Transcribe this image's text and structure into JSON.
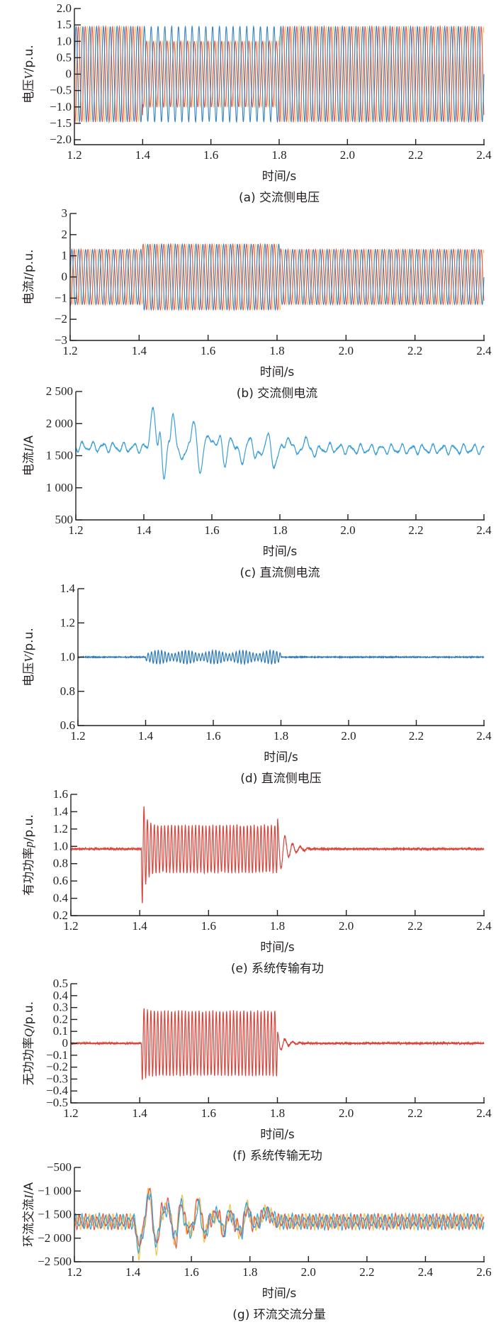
{
  "chart_data": [
    {
      "id": "a",
      "type": "line",
      "title": "(a) 交流侧电压",
      "xlabel": "时间/s",
      "ylabel": {
        "prefix": "电压",
        "var": "V",
        "unit": "/p.u."
      },
      "xlim": [
        1.2,
        2.4
      ],
      "ylim": [
        -2.0,
        2.0
      ],
      "xticks": [
        1.2,
        1.4,
        1.6,
        1.8,
        2.0,
        2.2,
        2.4
      ],
      "xtick_labels": [
        "1.2",
        "1.4",
        "1.6",
        "1.8",
        "2.0",
        "2.2",
        "2.4"
      ],
      "yticks": [
        2.0,
        1.5,
        1.0,
        0.5,
        0,
        -0.5,
        -1.0,
        -1.5,
        -2.0
      ],
      "ytick_labels": [
        "2.0",
        "1.5",
        "1.0",
        "0.5",
        "0",
        "−0.5",
        "−1.0",
        "−1.5",
        "−2.0"
      ],
      "generator": "sine3",
      "frequency_hz": 50,
      "series": [
        {
          "name": "phase-c",
          "color": "#f3c27a",
          "phase_deg": 120,
          "segments": [
            [
              1.2,
              1.4,
              1.45
            ],
            [
              1.4,
              1.8,
              1.0
            ],
            [
              1.8,
              2.4,
              1.45
            ]
          ]
        },
        {
          "name": "phase-b",
          "color": "#dc4a3f",
          "phase_deg": -120,
          "segments": [
            [
              1.2,
              1.4,
              1.45
            ],
            [
              1.4,
              1.8,
              1.0
            ],
            [
              1.8,
              2.4,
              1.45
            ]
          ]
        },
        {
          "name": "phase-a",
          "color": "#2277b8",
          "phase_deg": 0,
          "segments": [
            [
              1.2,
              1.4,
              1.45
            ],
            [
              1.4,
              1.8,
              1.45
            ],
            [
              1.8,
              2.4,
              1.45
            ]
          ]
        }
      ]
    },
    {
      "id": "b",
      "type": "line",
      "title": "(b) 交流侧电流",
      "xlabel": "时间/s",
      "ylabel": {
        "prefix": "电流",
        "var": "I",
        "unit": "/p.u."
      },
      "xlim": [
        1.2,
        2.4
      ],
      "ylim": [
        -3,
        3
      ],
      "xticks": [
        1.2,
        1.4,
        1.6,
        1.8,
        2.0,
        2.2,
        2.4
      ],
      "xtick_labels": [
        "1.2",
        "1.4",
        "1.6",
        "1.8",
        "2.0",
        "2.2",
        "2.4"
      ],
      "yticks": [
        3,
        2,
        1,
        0,
        -1,
        -2,
        -3
      ],
      "ytick_labels": [
        "3",
        "2",
        "1",
        "0",
        "−1",
        "−2",
        "−3"
      ],
      "generator": "sine3",
      "frequency_hz": 50,
      "series": [
        {
          "name": "phase-c",
          "color": "#f3c27a",
          "phase_deg": 120,
          "segments": [
            [
              1.2,
              1.41,
              1.3
            ],
            [
              1.41,
              1.81,
              1.55
            ],
            [
              1.81,
              2.4,
              1.3
            ]
          ]
        },
        {
          "name": "phase-b",
          "color": "#dc4a3f",
          "phase_deg": -120,
          "segments": [
            [
              1.2,
              1.41,
              1.3
            ],
            [
              1.41,
              1.81,
              1.55
            ],
            [
              1.81,
              2.4,
              1.3
            ]
          ]
        },
        {
          "name": "phase-a",
          "color": "#2277b8",
          "phase_deg": 0,
          "segments": [
            [
              1.2,
              1.41,
              1.3
            ],
            [
              1.41,
              1.81,
              1.55
            ],
            [
              1.81,
              2.4,
              1.3
            ]
          ]
        }
      ]
    },
    {
      "id": "c",
      "type": "line",
      "title": "(c) 直流侧电流",
      "xlabel": "时间/s",
      "ylabel": {
        "prefix": "电流",
        "var": "I",
        "unit": "/A"
      },
      "xlim": [
        1.2,
        2.4
      ],
      "ylim": [
        500,
        2500
      ],
      "xticks": [
        1.2,
        1.4,
        1.6,
        1.8,
        2.0,
        2.2,
        2.4
      ],
      "xtick_labels": [
        "1.2",
        "1.4",
        "1.6",
        "1.8",
        "2.0",
        "2.2",
        "2.4"
      ],
      "yticks": [
        2500,
        2000,
        1500,
        1000,
        500
      ],
      "ytick_labels": [
        "2 500",
        "2 000",
        "1 500",
        "1 000",
        "500"
      ],
      "generator": "points",
      "series": [
        {
          "name": "dc-current",
          "color": "#3a9fd6",
          "ripple_hz": 33,
          "ripple_amp": 60,
          "ripple_phase_deg": 0,
          "points": [
            [
              1.2,
              1640
            ],
            [
              1.41,
              1620
            ],
            [
              1.425,
              2230
            ],
            [
              1.44,
              1700
            ],
            [
              1.447,
              1900
            ],
            [
              1.46,
              1100
            ],
            [
              1.475,
              1800
            ],
            [
              1.485,
              2120
            ],
            [
              1.5,
              1600
            ],
            [
              1.52,
              1450
            ],
            [
              1.535,
              1750
            ],
            [
              1.545,
              2050
            ],
            [
              1.565,
              1300
            ],
            [
              1.585,
              1750
            ],
            [
              1.6,
              1800
            ],
            [
              1.612,
              1600
            ],
            [
              1.625,
              1830
            ],
            [
              1.64,
              1300
            ],
            [
              1.655,
              1830
            ],
            [
              1.67,
              1600
            ],
            [
              1.69,
              1450
            ],
            [
              1.715,
              1780
            ],
            [
              1.73,
              1450
            ],
            [
              1.745,
              1560
            ],
            [
              1.765,
              1780
            ],
            [
              1.785,
              1350
            ],
            [
              1.81,
              1700
            ],
            [
              1.84,
              1700
            ],
            [
              1.855,
              1480
            ],
            [
              1.875,
              1800
            ],
            [
              1.89,
              1560
            ],
            [
              1.95,
              1620
            ],
            [
              2.0,
              1600
            ],
            [
              2.4,
              1600
            ]
          ]
        }
      ]
    },
    {
      "id": "d",
      "type": "line",
      "title": "(d) 直流侧电压",
      "xlabel": "时间/s",
      "ylabel": {
        "prefix": "电压",
        "var": "V",
        "unit": "/p.u."
      },
      "xlim": [
        1.2,
        2.4
      ],
      "ylim": [
        0.6,
        1.4
      ],
      "xticks": [
        1.2,
        1.4,
        1.6,
        1.8,
        2.0,
        2.2,
        2.4
      ],
      "xtick_labels": [
        "1.2",
        "1.4",
        "1.6",
        "1.8",
        "2.0",
        "2.2",
        "2.4"
      ],
      "yticks": [
        1.4,
        1.2,
        1.0,
        0.8,
        0.6
      ],
      "ytick_labels": [
        "1.4",
        "1.2",
        "1.0",
        "0.8",
        "0.6"
      ],
      "generator": "burst",
      "series": [
        {
          "name": "dc-voltage",
          "color": "#2a78b8",
          "base": 1.0,
          "noise": 0.002,
          "burst": [
            1.4,
            1.8
          ],
          "burst_amp": 0.04,
          "burst_hz": 100,
          "mod_hz": 12,
          "spike": 0,
          "ring_amp": 0,
          "ring_hz": 40,
          "ring_decay_s": 0.02
        }
      ]
    },
    {
      "id": "e",
      "type": "line",
      "title": "(e) 系统传输有功",
      "xlabel": "时间/s",
      "ylabel": {
        "prefix": "有功功率",
        "var": "p",
        "unit": "/p.u."
      },
      "xlim": [
        1.2,
        2.4
      ],
      "ylim": [
        0.2,
        1.6
      ],
      "xticks": [
        1.2,
        1.4,
        1.6,
        1.8,
        2.0,
        2.2,
        2.4
      ],
      "xtick_labels": [
        "1.2",
        "1.4",
        "1.6",
        "1.8",
        "2.0",
        "2.2",
        "2.4"
      ],
      "yticks": [
        1.6,
        1.4,
        1.2,
        1.0,
        0.8,
        0.6,
        0.4,
        0.2
      ],
      "ytick_labels": [
        "1.6",
        "1.4",
        "1.2",
        "1.0",
        "0.8",
        "0.6",
        "0.4",
        "0.2"
      ],
      "generator": "burst",
      "series": [
        {
          "name": "active-power",
          "color": "#d9443b",
          "base": 0.97,
          "noise": 0.012,
          "burst": [
            1.405,
            1.8
          ],
          "burst_amp": 0.27,
          "burst_hz": 100,
          "mod_hz": 0,
          "spike": 0.45,
          "ring_amp": 0.35,
          "ring_hz": 45,
          "ring_decay_s": 0.025
        }
      ]
    },
    {
      "id": "f",
      "type": "line",
      "title": "(f) 系统传输无功",
      "xlabel": "时间/s",
      "ylabel": {
        "prefix": "无功功率",
        "var": "Q",
        "unit": "/p.u."
      },
      "xlim": [
        1.2,
        2.4
      ],
      "ylim": [
        -0.5,
        0.5
      ],
      "xticks": [
        1.2,
        1.4,
        1.6,
        1.8,
        2.0,
        2.2,
        2.4
      ],
      "xtick_labels": [
        "1.2",
        "1.4",
        "1.6",
        "1.8",
        "2.0",
        "2.2",
        "2.4"
      ],
      "yticks": [
        0.5,
        0.4,
        0.3,
        0.2,
        0.1,
        0,
        -0.1,
        -0.2,
        -0.3,
        -0.4,
        -0.5
      ],
      "ytick_labels": [
        "0.5",
        "0.4",
        "0.3",
        "0.2",
        "0.1",
        "0",
        "−0.1",
        "−0.2",
        "−0.3",
        "−0.4",
        "−0.5"
      ],
      "generator": "burst",
      "series": [
        {
          "name": "reactive-power",
          "color": "#d9443b",
          "base": 0.0,
          "noise": 0.008,
          "burst": [
            1.405,
            1.8
          ],
          "burst_amp": 0.27,
          "burst_hz": 100,
          "mod_hz": 0,
          "spike": 0.05,
          "ring_amp": 0.1,
          "ring_hz": 45,
          "ring_decay_s": 0.02
        }
      ]
    },
    {
      "id": "g",
      "type": "line",
      "title": "(g) 环流交流分量",
      "xlabel": "时间/s",
      "ylabel": {
        "prefix": "环流交流",
        "var": "I",
        "unit": "/A"
      },
      "xlim": [
        1.2,
        2.6
      ],
      "ylim": [
        -2500,
        -500
      ],
      "xticks": [
        1.2,
        1.4,
        1.6,
        1.8,
        2.0,
        2.2,
        2.4,
        2.6
      ],
      "xtick_labels": [
        "1.2",
        "1.4",
        "1.6",
        "1.8",
        "2.0",
        "2.2",
        "2.4",
        "2.6"
      ],
      "yticks": [
        -500,
        -1000,
        -1500,
        -2000,
        -2500
      ],
      "ytick_labels": [
        "−500",
        "−1 000",
        "−1 500",
        "−2 000",
        "−2 500"
      ],
      "generator": "points",
      "series": [
        {
          "name": "circulating-a",
          "color": "#f0c64a",
          "ripple_hz": 50,
          "ripple_amp": 120,
          "ripple_phase_deg": 240,
          "points": [
            [
              1.2,
              -1650
            ],
            [
              1.405,
              -1650
            ],
            [
              1.42,
              -2300
            ],
            [
              1.435,
              -1800
            ],
            [
              1.455,
              -1050
            ],
            [
              1.48,
              -2200
            ],
            [
              1.5,
              -1450
            ],
            [
              1.52,
              -1350
            ],
            [
              1.545,
              -2050
            ],
            [
              1.565,
              -1150
            ],
            [
              1.585,
              -1800
            ],
            [
              1.6,
              -1850
            ],
            [
              1.625,
              -1200
            ],
            [
              1.645,
              -1950
            ],
            [
              1.665,
              -1600
            ],
            [
              1.69,
              -1500
            ],
            [
              1.71,
              -1850
            ],
            [
              1.73,
              -1450
            ],
            [
              1.75,
              -1700
            ],
            [
              1.77,
              -1900
            ],
            [
              1.79,
              -1350
            ],
            [
              1.81,
              -1700
            ],
            [
              1.83,
              -1650
            ],
            [
              1.85,
              -1450
            ],
            [
              1.9,
              -1650
            ],
            [
              2.6,
              -1650
            ]
          ]
        },
        {
          "name": "circulating-b",
          "color": "#e4574a",
          "ripple_hz": 50,
          "ripple_amp": 120,
          "ripple_phase_deg": 120,
          "points": [
            [
              1.2,
              -1650
            ],
            [
              1.405,
              -1650
            ],
            [
              1.42,
              -2200
            ],
            [
              1.435,
              -1800
            ],
            [
              1.455,
              -1000
            ],
            [
              1.48,
              -2150
            ],
            [
              1.5,
              -1400
            ],
            [
              1.52,
              -1300
            ],
            [
              1.545,
              -2100
            ],
            [
              1.565,
              -1250
            ],
            [
              1.585,
              -1750
            ],
            [
              1.6,
              -1800
            ],
            [
              1.625,
              -1180
            ],
            [
              1.645,
              -1900
            ],
            [
              1.665,
              -1600
            ],
            [
              1.69,
              -1450
            ],
            [
              1.71,
              -1900
            ],
            [
              1.73,
              -1450
            ],
            [
              1.75,
              -1700
            ],
            [
              1.77,
              -1850
            ],
            [
              1.79,
              -1350
            ],
            [
              1.81,
              -1700
            ],
            [
              1.83,
              -1650
            ],
            [
              1.85,
              -1450
            ],
            [
              1.9,
              -1650
            ],
            [
              2.6,
              -1650
            ]
          ]
        },
        {
          "name": "circulating-c",
          "color": "#3aa6d8",
          "ripple_hz": 50,
          "ripple_amp": 120,
          "ripple_phase_deg": 0,
          "points": [
            [
              1.2,
              -1650
            ],
            [
              1.405,
              -1650
            ],
            [
              1.42,
              -2250
            ],
            [
              1.435,
              -1850
            ],
            [
              1.455,
              -1000
            ],
            [
              1.48,
              -2100
            ],
            [
              1.5,
              -1500
            ],
            [
              1.52,
              -1350
            ],
            [
              1.545,
              -2000
            ],
            [
              1.565,
              -1300
            ],
            [
              1.585,
              -1800
            ],
            [
              1.6,
              -1850
            ],
            [
              1.625,
              -1350
            ],
            [
              1.645,
              -1950
            ],
            [
              1.665,
              -1600
            ],
            [
              1.69,
              -1500
            ],
            [
              1.71,
              -1850
            ],
            [
              1.73,
              -1450
            ],
            [
              1.75,
              -1700
            ],
            [
              1.77,
              -1900
            ],
            [
              1.79,
              -1300
            ],
            [
              1.81,
              -1700
            ],
            [
              1.83,
              -1650
            ],
            [
              1.85,
              -1450
            ],
            [
              1.9,
              -1650
            ],
            [
              2.6,
              -1650
            ]
          ]
        }
      ]
    }
  ]
}
